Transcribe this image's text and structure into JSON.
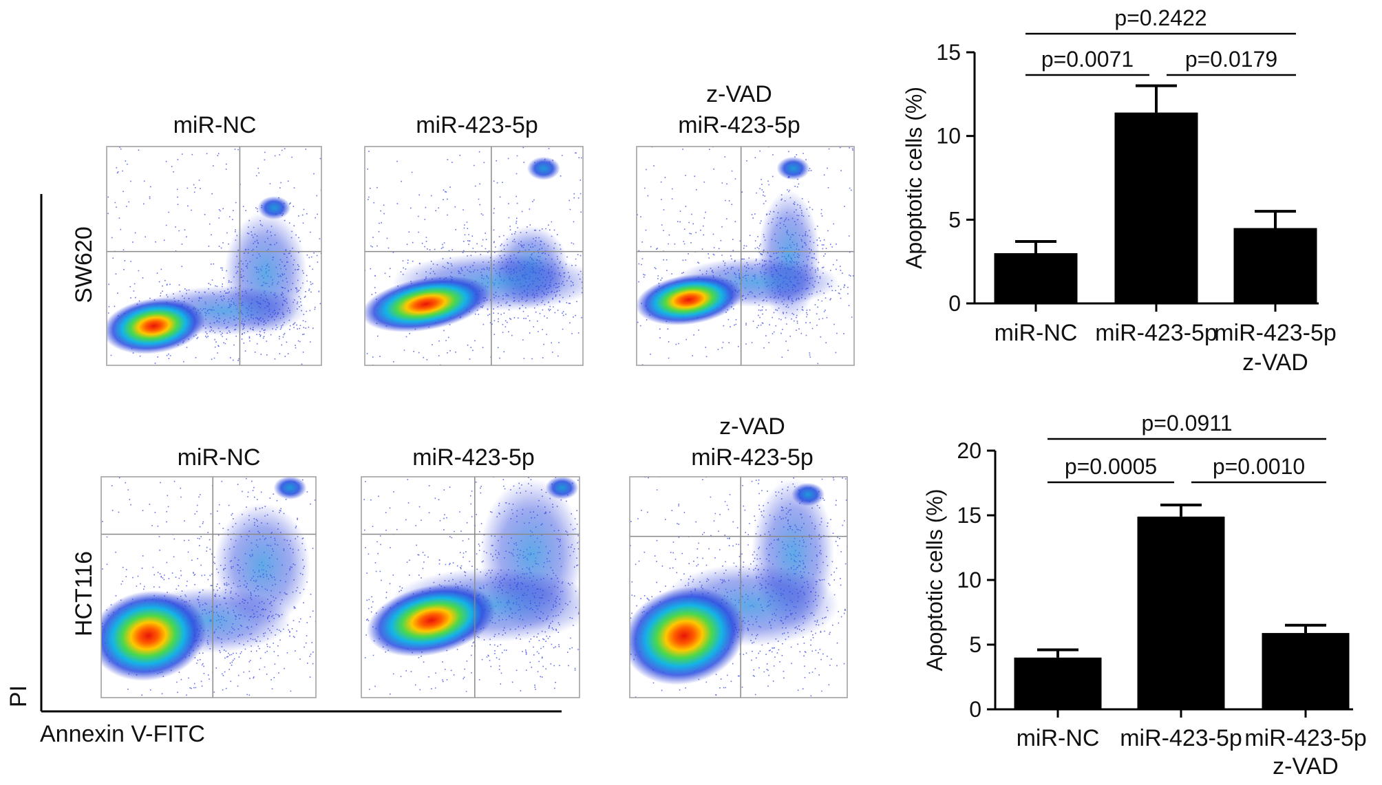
{
  "flow": {
    "columns": [
      {
        "title": [
          "miR-NC"
        ]
      },
      {
        "title": [
          "miR-423-5p"
        ]
      },
      {
        "title": [
          "z-VAD",
          "miR-423-5p"
        ]
      }
    ],
    "rows": [
      "SW620",
      "HCT116"
    ],
    "y_axis_label": "PI",
    "x_axis_label": "Annexin V-FITC"
  },
  "chart_data": [
    {
      "type": "bar",
      "categories": [
        [
          "miR-NC"
        ],
        [
          "miR-423-5p"
        ],
        [
          "miR-423-5p",
          "z-VAD"
        ]
      ],
      "values": [
        3.0,
        11.4,
        4.5
      ],
      "errors": [
        0.7,
        1.6,
        1.0
      ],
      "ylabel": "Apoptotic cells (%)",
      "ylim": [
        0,
        15
      ],
      "yticks": [
        0,
        5,
        10,
        15
      ],
      "bar_color": "#000000",
      "comparisons": [
        {
          "from": 0,
          "to": 2,
          "label": "p=0.2422"
        },
        {
          "from": 0,
          "to": 1,
          "label": "p=0.0071"
        },
        {
          "from": 1,
          "to": 2,
          "label": "p=0.0179"
        }
      ]
    },
    {
      "type": "bar",
      "categories": [
        [
          "miR-NC"
        ],
        [
          "miR-423-5p"
        ],
        [
          "miR-423-5p",
          "z-VAD"
        ]
      ],
      "values": [
        4.0,
        14.9,
        5.9
      ],
      "errors": [
        0.6,
        0.9,
        0.6
      ],
      "ylabel": "Apoptotic cells (%)",
      "ylim": [
        0,
        20
      ],
      "yticks": [
        0,
        5,
        10,
        15,
        20
      ],
      "bar_color": "#000000",
      "comparisons": [
        {
          "from": 0,
          "to": 2,
          "label": "p=0.0911"
        },
        {
          "from": 0,
          "to": 1,
          "label": "p=0.0005"
        },
        {
          "from": 1,
          "to": 2,
          "label": "p=0.0010"
        }
      ]
    }
  ]
}
